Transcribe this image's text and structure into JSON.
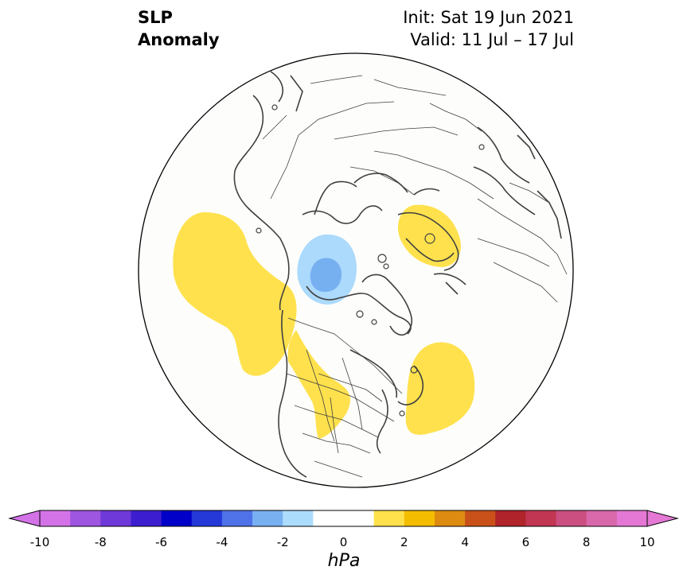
{
  "header": {
    "title_line1": "SLP",
    "title_line2": "Anomaly",
    "init_text": "Init: Sat 19 Jun 2021",
    "valid_text": "Valid: 11 Jul – 17 Jul"
  },
  "map": {
    "projection": "north polar stereographic",
    "background_color": "#fdfefb",
    "coastline_color": "#404040",
    "anomaly_regions": [
      {
        "name": "north-pacific-high",
        "sign": "positive",
        "level": "1 to 2 hPa",
        "color": "#ffe14d"
      },
      {
        "name": "western-north-america-high",
        "sign": "positive",
        "level": "1 to 2 hPa",
        "color": "#ffe14d"
      },
      {
        "name": "scandinavia-high",
        "sign": "positive",
        "level": "1 to 2 hPa",
        "color": "#ffe14d"
      },
      {
        "name": "north-atlantic-high",
        "sign": "positive",
        "level": "1 to 2 hPa",
        "color": "#ffe14d"
      },
      {
        "name": "arctic-low-outer",
        "sign": "negative",
        "level": "-2 to -1 hPa",
        "color": "#acdafc"
      },
      {
        "name": "arctic-low-inner",
        "sign": "negative",
        "level": "-3 to -2 hPa",
        "color": "#77b0f1"
      }
    ]
  },
  "colorbar": {
    "unit": "hPa",
    "ticks": [
      "-10",
      "-8",
      "-6",
      "-4",
      "-2",
      "0",
      "2",
      "4",
      "6",
      "8",
      "10"
    ],
    "colors": [
      "#d473e8",
      "#9e55e0",
      "#6f38d8",
      "#3c1ed0",
      "#0000c8",
      "#2539d9",
      "#4f72e8",
      "#78b0f2",
      "#acdcfc",
      "#ffffff",
      "#ffffff",
      "#ffe14c",
      "#f4bd00",
      "#de8b12",
      "#c95119",
      "#b0232a",
      "#c13652",
      "#cb4f80",
      "#d868aa",
      "#e478d4"
    ],
    "under_color": "#d473e8",
    "over_color": "#e478d4"
  }
}
